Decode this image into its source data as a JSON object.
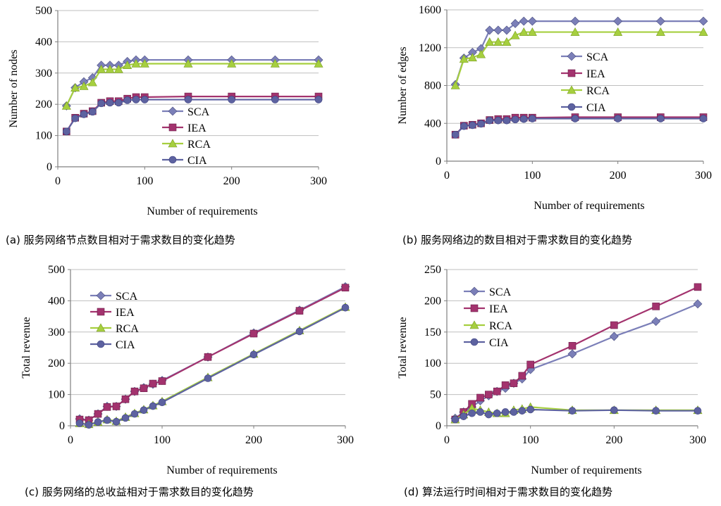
{
  "colors": {
    "SCA": "#7B7FB8",
    "IEA": "#A3336E",
    "RCA": "#A6CF3F",
    "CIA": "#5D62A0",
    "grid": "#BFBFBF",
    "axis": "#808080"
  },
  "chart_data": [
    {
      "type": "line",
      "caption": "(a)  服务网络节点数目相对于需求数目的变化趋势",
      "xlabel": "Number of requirements",
      "ylabel": "Number of nodes",
      "xlim": [
        0,
        300
      ],
      "ylim": [
        0,
        500
      ],
      "xticks": [
        0,
        100,
        200,
        300
      ],
      "yticks": [
        0,
        100,
        200,
        300,
        400,
        500
      ],
      "grid": true,
      "legend_position": "center",
      "series": [
        {
          "name": "SCA",
          "marker": "diamond",
          "x": [
            10,
            20,
            30,
            40,
            50,
            60,
            70,
            80,
            90,
            100,
            150,
            200,
            250,
            300
          ],
          "y": [
            195,
            253,
            272,
            285,
            325,
            325,
            325,
            337,
            342,
            342,
            342,
            342,
            342,
            342
          ]
        },
        {
          "name": "IEA",
          "marker": "square",
          "x": [
            10,
            20,
            30,
            40,
            50,
            60,
            70,
            80,
            90,
            100,
            150,
            200,
            250,
            300
          ],
          "y": [
            113,
            157,
            170,
            178,
            205,
            210,
            210,
            218,
            223,
            223,
            225,
            225,
            225,
            225
          ]
        },
        {
          "name": "RCA",
          "marker": "triangle",
          "x": [
            10,
            20,
            30,
            40,
            50,
            60,
            70,
            80,
            90,
            100,
            150,
            200,
            250,
            300
          ],
          "y": [
            195,
            253,
            258,
            270,
            312,
            312,
            312,
            325,
            330,
            330,
            330,
            330,
            330,
            330
          ]
        },
        {
          "name": "CIA",
          "marker": "circle",
          "x": [
            10,
            20,
            30,
            40,
            50,
            60,
            70,
            80,
            90,
            100,
            150,
            200,
            250,
            300
          ],
          "y": [
            113,
            155,
            168,
            176,
            203,
            205,
            205,
            213,
            215,
            215,
            215,
            215,
            215,
            215
          ]
        }
      ]
    },
    {
      "type": "line",
      "caption": "(b)  服务网络边的数目相对于需求数目的变化趋势",
      "xlabel": "Number of requirements",
      "ylabel": "Number of edges",
      "xlim": [
        0,
        300
      ],
      "ylim": [
        0,
        1600
      ],
      "xticks": [
        0,
        100,
        200,
        300
      ],
      "yticks": [
        0,
        400,
        800,
        1200,
        1600
      ],
      "grid": true,
      "legend_position": "right",
      "series": [
        {
          "name": "SCA",
          "marker": "diamond",
          "x": [
            10,
            20,
            30,
            40,
            50,
            60,
            70,
            80,
            90,
            100,
            150,
            200,
            250,
            300
          ],
          "y": [
            810,
            1090,
            1150,
            1190,
            1385,
            1385,
            1385,
            1455,
            1480,
            1480,
            1480,
            1480,
            1480,
            1480
          ]
        },
        {
          "name": "IEA",
          "marker": "square",
          "x": [
            10,
            20,
            30,
            40,
            50,
            60,
            70,
            80,
            90,
            100,
            150,
            200,
            250,
            300
          ],
          "y": [
            280,
            375,
            385,
            400,
            435,
            445,
            445,
            460,
            460,
            460,
            465,
            465,
            465,
            465
          ]
        },
        {
          "name": "RCA",
          "marker": "triangle",
          "x": [
            10,
            20,
            30,
            40,
            50,
            60,
            70,
            80,
            90,
            100,
            150,
            200,
            250,
            300
          ],
          "y": [
            800,
            1080,
            1095,
            1130,
            1260,
            1260,
            1260,
            1330,
            1365,
            1365,
            1365,
            1365,
            1365,
            1365
          ]
        },
        {
          "name": "CIA",
          "marker": "circle",
          "x": [
            10,
            20,
            30,
            40,
            50,
            60,
            70,
            80,
            90,
            100,
            150,
            200,
            250,
            300
          ],
          "y": [
            280,
            370,
            380,
            395,
            430,
            430,
            430,
            440,
            445,
            450,
            450,
            450,
            450,
            450
          ]
        }
      ]
    },
    {
      "type": "line",
      "caption": "(c)  服务网络的总收益相对于需求数目的变化趋势",
      "xlabel": "Number of requirements",
      "ylabel": "Total revenue",
      "xlim": [
        0,
        300
      ],
      "ylim": [
        0,
        500
      ],
      "xticks": [
        0,
        100,
        200,
        300
      ],
      "yticks": [
        0,
        100,
        200,
        300,
        400,
        500
      ],
      "grid": true,
      "legend_position": "top-left",
      "series": [
        {
          "name": "SCA",
          "marker": "diamond",
          "x": [
            10,
            20,
            30,
            40,
            50,
            60,
            70,
            80,
            90,
            100,
            150,
            200,
            250,
            300
          ],
          "y": [
            22,
            18,
            38,
            62,
            62,
            85,
            110,
            122,
            133,
            145,
            220,
            297,
            370,
            445
          ]
        },
        {
          "name": "IEA",
          "marker": "square",
          "x": [
            10,
            20,
            30,
            40,
            50,
            60,
            70,
            80,
            90,
            100,
            150,
            200,
            250,
            300
          ],
          "y": [
            20,
            18,
            38,
            60,
            62,
            85,
            110,
            120,
            135,
            143,
            220,
            295,
            368,
            442
          ]
        },
        {
          "name": "RCA",
          "marker": "triangle",
          "x": [
            10,
            20,
            30,
            40,
            50,
            60,
            70,
            80,
            90,
            100,
            150,
            200,
            250,
            300
          ],
          "y": [
            8,
            5,
            12,
            20,
            15,
            28,
            40,
            52,
            65,
            78,
            155,
            230,
            305,
            380
          ]
        },
        {
          "name": "CIA",
          "marker": "circle",
          "x": [
            10,
            20,
            30,
            40,
            50,
            60,
            70,
            80,
            90,
            100,
            150,
            200,
            250,
            300
          ],
          "y": [
            8,
            3,
            12,
            18,
            13,
            25,
            38,
            50,
            63,
            75,
            152,
            228,
            302,
            378
          ]
        }
      ]
    },
    {
      "type": "line",
      "caption": "(d)  算法运行时间相对于需求数目的变化趋势",
      "xlabel": "Number of requirements",
      "ylabel": "Total revenue",
      "xlim": [
        0,
        300
      ],
      "ylim": [
        0,
        250
      ],
      "xticks": [
        0,
        100,
        200,
        300
      ],
      "yticks": [
        0,
        50,
        100,
        150,
        200,
        250
      ],
      "grid": true,
      "legend_position": "top-left",
      "series": [
        {
          "name": "SCA",
          "marker": "diamond",
          "x": [
            10,
            20,
            30,
            40,
            50,
            60,
            70,
            80,
            90,
            100,
            150,
            200,
            250,
            300
          ],
          "y": [
            12,
            22,
            30,
            40,
            48,
            55,
            60,
            68,
            75,
            90,
            115,
            143,
            167,
            195
          ]
        },
        {
          "name": "IEA",
          "marker": "square",
          "x": [
            10,
            20,
            30,
            40,
            50,
            60,
            70,
            80,
            90,
            100,
            150,
            200,
            250,
            300
          ],
          "y": [
            10,
            22,
            35,
            45,
            50,
            55,
            65,
            68,
            80,
            98,
            128,
            161,
            191,
            222
          ]
        },
        {
          "name": "RCA",
          "marker": "triangle",
          "x": [
            10,
            20,
            30,
            40,
            50,
            60,
            70,
            80,
            90,
            100,
            150,
            200,
            250,
            300
          ],
          "y": [
            10,
            18,
            28,
            25,
            22,
            20,
            20,
            25,
            27,
            30,
            25,
            25,
            25,
            25
          ]
        },
        {
          "name": "CIA",
          "marker": "circle",
          "x": [
            10,
            20,
            30,
            40,
            50,
            60,
            70,
            80,
            90,
            100,
            150,
            200,
            250,
            300
          ],
          "y": [
            10,
            15,
            20,
            22,
            18,
            20,
            22,
            22,
            24,
            26,
            24,
            25,
            24,
            24
          ]
        }
      ]
    }
  ]
}
